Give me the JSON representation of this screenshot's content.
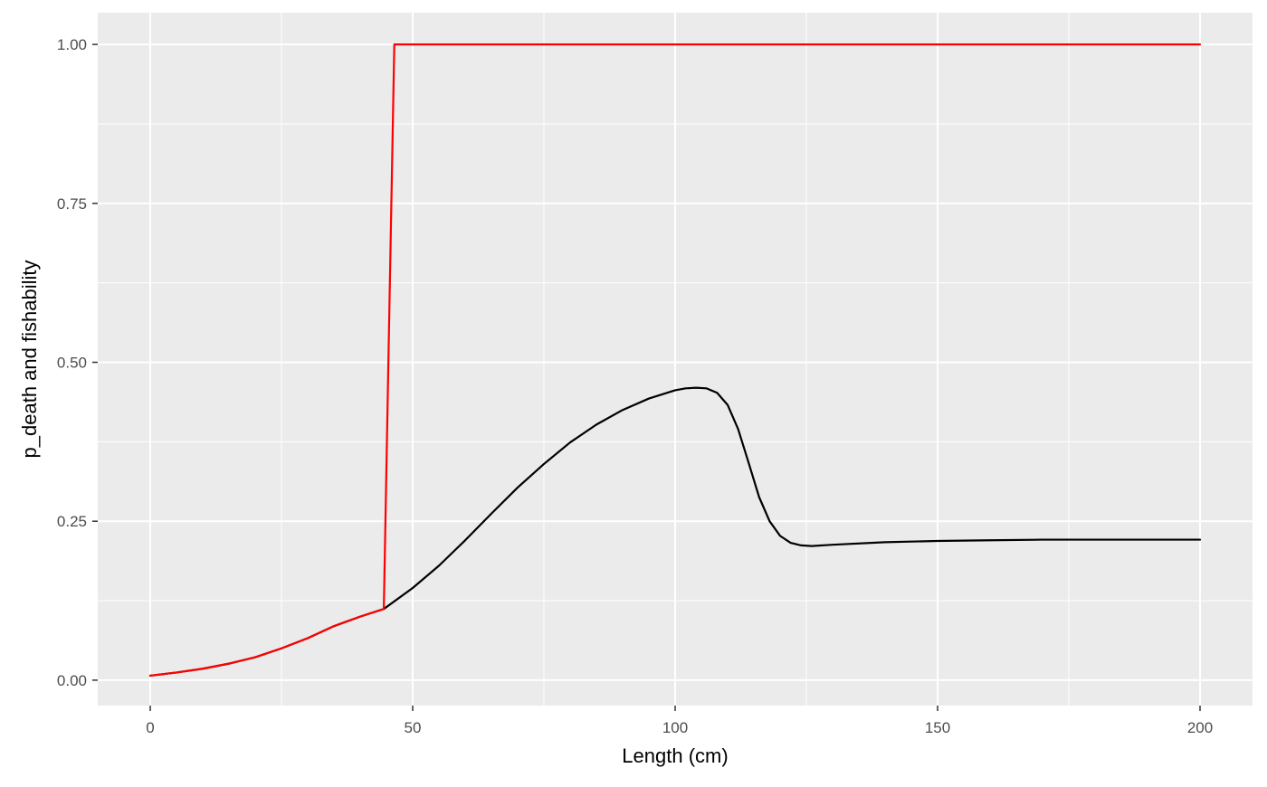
{
  "chart_data": {
    "type": "line",
    "title": "",
    "xlabel": "Length (cm)",
    "ylabel": "p_death and fishability",
    "xlim": [
      -10,
      210
    ],
    "ylim": [
      -0.04,
      1.05
    ],
    "x_ticks": [
      0,
      50,
      100,
      150,
      200
    ],
    "x_tick_labels": [
      "0",
      "50",
      "100",
      "150",
      "200"
    ],
    "x_minor": [
      25,
      75,
      125,
      175
    ],
    "y_ticks": [
      0,
      0.25,
      0.5,
      0.75,
      1.0
    ],
    "y_tick_labels": [
      "0.00",
      "0.25",
      "0.50",
      "0.75",
      "1.00"
    ],
    "y_minor": [
      0.125,
      0.375,
      0.625,
      0.875
    ],
    "grid": true,
    "panel_background": "#ebebeb",
    "grid_color": "#ffffff",
    "series": [
      {
        "color": "#000000",
        "x": [
          0,
          5,
          10,
          15,
          20,
          25,
          30,
          35,
          40,
          44.5,
          50,
          55,
          60,
          65,
          70,
          75,
          80,
          85,
          90,
          95,
          100,
          102,
          104,
          106,
          108,
          110,
          112,
          114,
          116,
          118,
          120,
          122,
          124,
          126,
          130,
          140,
          150,
          160,
          170,
          180,
          190,
          200
        ],
        "y": [
          0.007,
          0.012,
          0.018,
          0.026,
          0.036,
          0.05,
          0.066,
          0.085,
          0.1,
          0.112,
          0.145,
          0.18,
          0.22,
          0.262,
          0.303,
          0.34,
          0.374,
          0.402,
          0.425,
          0.443,
          0.456,
          0.459,
          0.46,
          0.459,
          0.452,
          0.433,
          0.395,
          0.342,
          0.288,
          0.25,
          0.227,
          0.216,
          0.212,
          0.211,
          0.213,
          0.217,
          0.219,
          0.22,
          0.221,
          0.221,
          0.221,
          0.221
        ]
      },
      {
        "color": "#ff0000",
        "x": [
          0,
          5,
          10,
          15,
          20,
          25,
          30,
          35,
          40,
          44.5,
          46.5,
          50,
          100,
          150,
          200
        ],
        "y": [
          0.007,
          0.012,
          0.018,
          0.026,
          0.036,
          0.05,
          0.066,
          0.085,
          0.1,
          0.112,
          1.0,
          1.0,
          1.0,
          1.0,
          1.0
        ]
      }
    ]
  }
}
